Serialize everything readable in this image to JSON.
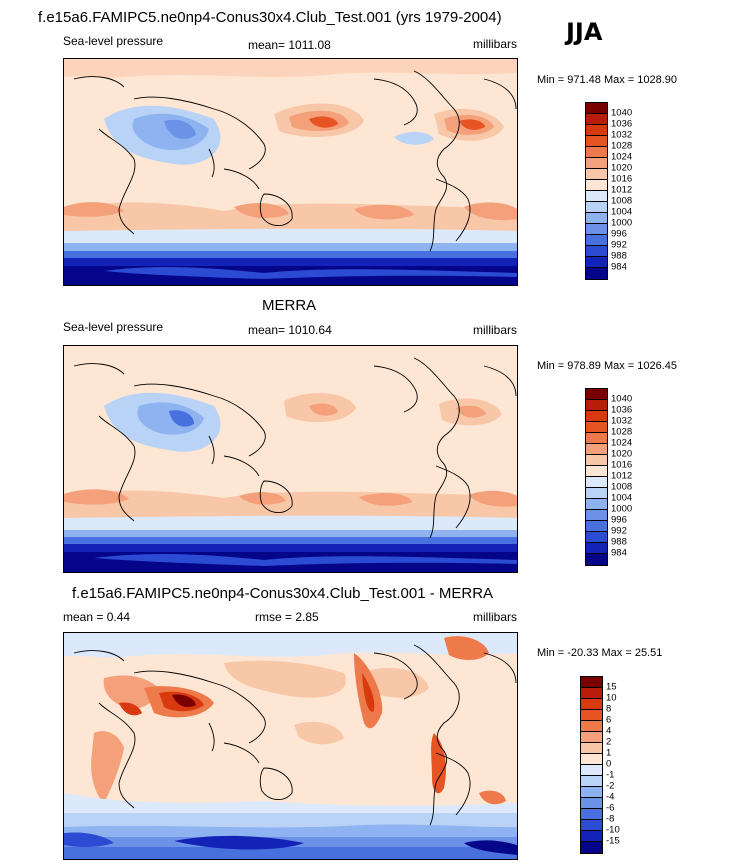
{
  "season": "JJA",
  "panels": [
    {
      "title": "f.e15a6.FAMIPC5.ne0np4-Conus30x4.Club_Test.001 (yrs 1979-2004)",
      "left_label": "Sea-level pressure",
      "center_label": "mean= 1011.08",
      "right_label": "millibars",
      "minmax": "Min = 971.48 Max = 1028.90",
      "colorbar_labels": [
        "1040",
        "1036",
        "1032",
        "1028",
        "1024",
        "1020",
        "1016",
        "1012",
        "1008",
        "1004",
        "1000",
        "996",
        "992",
        "988",
        "984"
      ]
    },
    {
      "title": "MERRA",
      "left_label": "Sea-level pressure",
      "center_label": "mean= 1010.64",
      "right_label": "millibars",
      "minmax": "Min = 978.89 Max = 1026.45",
      "colorbar_labels": [
        "1040",
        "1036",
        "1032",
        "1028",
        "1024",
        "1020",
        "1016",
        "1012",
        "1008",
        "1004",
        "1000",
        "996",
        "992",
        "988",
        "984"
      ]
    },
    {
      "title": "f.e15a6.FAMIPC5.ne0np4-Conus30x4.Club_Test.001 - MERRA",
      "left_label": "mean =   0.44",
      "center_label": "rmse =   2.85",
      "right_label": "millibars",
      "minmax": "Min = -20.33 Max =  25.51",
      "colorbar_labels": [
        "15",
        "10",
        "8",
        "6",
        "4",
        "2",
        "1",
        "0",
        "-1",
        "-2",
        "-4",
        "-6",
        "-8",
        "-10",
        "-15"
      ]
    }
  ],
  "colors": {
    "pressure_scale": [
      "#7a0000",
      "#b81d0a",
      "#d8390f",
      "#e65423",
      "#ee7a4b",
      "#f4a07a",
      "#f8c7a8",
      "#fde6d3",
      "#dbe9fb",
      "#b9d3f7",
      "#8fb3f0",
      "#6c92e8",
      "#4870de",
      "#2a4bd2",
      "#1323b8",
      "#05058a"
    ],
    "diff_scale": [
      "#7a0000",
      "#b81d0a",
      "#d8390f",
      "#e65423",
      "#ee7a4b",
      "#f4a07a",
      "#f8c7a8",
      "#fde6d3",
      "#dbe9fb",
      "#b9d3f7",
      "#8fb3f0",
      "#6c92e8",
      "#4870de",
      "#2a4bd2",
      "#1323b8",
      "#05058a"
    ]
  }
}
